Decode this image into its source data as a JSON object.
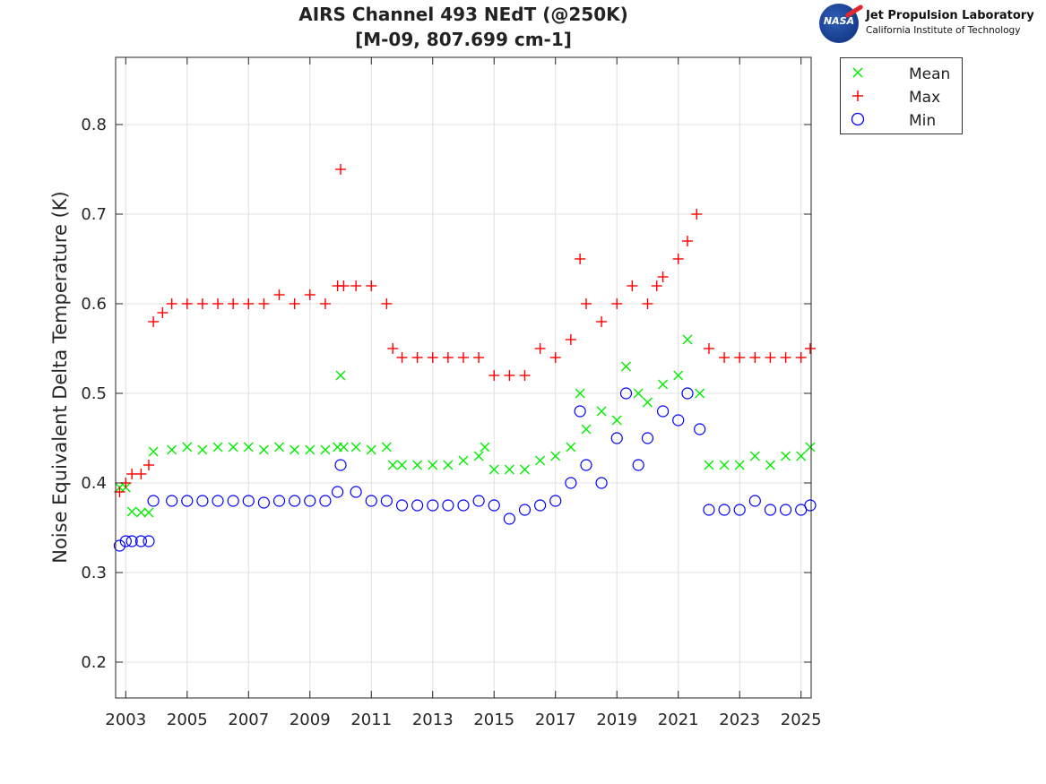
{
  "logo": {
    "seal_text": "NASA",
    "line1": "Jet Propulsion Laboratory",
    "line2": "California Institute of Technology"
  },
  "colors": {
    "mean": "#00ee00",
    "max": "#ff0000",
    "min": "#0000ff",
    "grid": "#e0e0e0",
    "axis": "#262626"
  },
  "chart_data": {
    "type": "scatter",
    "title": "AIRS Channel 493 NEdT (@250K)",
    "subtitle": "[M-09, 807.699 cm-1]",
    "xlabel": "",
    "ylabel": "Noise Equivalent Delta Temperature (K)",
    "xlim": [
      2002.67,
      2025.33
    ],
    "ylim": [
      0.16,
      0.875
    ],
    "x_ticks": [
      2003,
      2005,
      2007,
      2009,
      2011,
      2013,
      2015,
      2017,
      2019,
      2021,
      2023,
      2025
    ],
    "x_tick_labels": [
      "2003",
      "2005",
      "2007",
      "2009",
      "2011",
      "2013",
      "2015",
      "2017",
      "2019",
      "2021",
      "2023",
      "2025"
    ],
    "y_ticks": [
      0.2,
      0.3,
      0.4,
      0.5,
      0.6,
      0.7,
      0.8
    ],
    "y_tick_labels": [
      "0.2",
      "0.3",
      "0.4",
      "0.5",
      "0.6",
      "0.7",
      "0.8"
    ],
    "grid": true,
    "legend_position": "outside-top-right",
    "series": [
      {
        "name": "Mean",
        "marker": "x",
        "x": [
          2002.8,
          2003.0,
          2003.2,
          2003.5,
          2003.75,
          2003.9,
          2004.5,
          2005.0,
          2005.5,
          2006.0,
          2006.5,
          2007.0,
          2007.5,
          2008.0,
          2008.5,
          2009.0,
          2009.5,
          2009.9,
          2010.0,
          2010.1,
          2010.5,
          2011.0,
          2011.5,
          2011.7,
          2012.0,
          2012.5,
          2013.0,
          2013.5,
          2014.0,
          2014.5,
          2014.7,
          2015.0,
          2015.5,
          2016.0,
          2016.5,
          2017.0,
          2017.5,
          2017.8,
          2018.0,
          2018.5,
          2019.0,
          2019.3,
          2019.7,
          2020.0,
          2020.5,
          2021.0,
          2021.3,
          2021.7,
          2022.0,
          2022.5,
          2023.0,
          2023.5,
          2024.0,
          2024.5,
          2025.0,
          2025.3
        ],
        "values": [
          0.395,
          0.395,
          0.368,
          0.367,
          0.367,
          0.435,
          0.437,
          0.44,
          0.437,
          0.44,
          0.44,
          0.44,
          0.437,
          0.44,
          0.437,
          0.437,
          0.437,
          0.44,
          0.52,
          0.44,
          0.44,
          0.437,
          0.44,
          0.42,
          0.42,
          0.42,
          0.42,
          0.42,
          0.425,
          0.43,
          0.44,
          0.415,
          0.415,
          0.415,
          0.425,
          0.43,
          0.44,
          0.5,
          0.46,
          0.48,
          0.47,
          0.53,
          0.5,
          0.49,
          0.51,
          0.52,
          0.56,
          0.5,
          0.42,
          0.42,
          0.42,
          0.43,
          0.42,
          0.43,
          0.43,
          0.44
        ]
      },
      {
        "name": "Max",
        "marker": "+",
        "x": [
          2002.8,
          2003.0,
          2003.2,
          2003.5,
          2003.75,
          2003.9,
          2004.2,
          2004.5,
          2005.0,
          2005.5,
          2006.0,
          2006.5,
          2007.0,
          2007.5,
          2008.0,
          2008.5,
          2009.0,
          2009.5,
          2009.9,
          2010.0,
          2010.1,
          2010.5,
          2011.0,
          2011.5,
          2011.7,
          2012.0,
          2012.5,
          2013.0,
          2013.5,
          2014.0,
          2014.5,
          2015.0,
          2015.5,
          2016.0,
          2016.5,
          2017.0,
          2017.5,
          2017.8,
          2018.0,
          2018.5,
          2019.0,
          2019.5,
          2020.0,
          2020.3,
          2020.5,
          2021.0,
          2021.3,
          2021.6,
          2022.0,
          2022.5,
          2023.0,
          2023.5,
          2024.0,
          2024.5,
          2025.0,
          2025.3
        ],
        "values": [
          0.39,
          0.4,
          0.41,
          0.41,
          0.42,
          0.58,
          0.59,
          0.6,
          0.6,
          0.6,
          0.6,
          0.6,
          0.6,
          0.6,
          0.61,
          0.6,
          0.61,
          0.6,
          0.62,
          0.75,
          0.62,
          0.62,
          0.62,
          0.6,
          0.55,
          0.54,
          0.54,
          0.54,
          0.54,
          0.54,
          0.54,
          0.52,
          0.52,
          0.52,
          0.55,
          0.54,
          0.56,
          0.65,
          0.6,
          0.58,
          0.6,
          0.62,
          0.6,
          0.62,
          0.63,
          0.65,
          0.67,
          0.7,
          0.55,
          0.54,
          0.54,
          0.54,
          0.54,
          0.54,
          0.54,
          0.55
        ]
      },
      {
        "name": "Min",
        "marker": "o",
        "x": [
          2002.8,
          2003.0,
          2003.2,
          2003.5,
          2003.75,
          2003.9,
          2004.5,
          2005.0,
          2005.5,
          2006.0,
          2006.5,
          2007.0,
          2007.5,
          2008.0,
          2008.5,
          2009.0,
          2009.5,
          2009.9,
          2010.0,
          2010.5,
          2011.0,
          2011.5,
          2012.0,
          2012.5,
          2013.0,
          2013.5,
          2014.0,
          2014.5,
          2015.0,
          2015.5,
          2016.0,
          2016.5,
          2017.0,
          2017.5,
          2017.8,
          2018.0,
          2018.5,
          2019.0,
          2019.3,
          2019.7,
          2020.0,
          2020.5,
          2021.0,
          2021.3,
          2021.7,
          2022.0,
          2022.5,
          2023.0,
          2023.5,
          2024.0,
          2024.5,
          2025.0,
          2025.3
        ],
        "values": [
          0.33,
          0.335,
          0.335,
          0.335,
          0.335,
          0.38,
          0.38,
          0.38,
          0.38,
          0.38,
          0.38,
          0.38,
          0.378,
          0.38,
          0.38,
          0.38,
          0.38,
          0.39,
          0.42,
          0.39,
          0.38,
          0.38,
          0.375,
          0.375,
          0.375,
          0.375,
          0.375,
          0.38,
          0.375,
          0.36,
          0.37,
          0.375,
          0.38,
          0.4,
          0.48,
          0.42,
          0.4,
          0.45,
          0.5,
          0.42,
          0.45,
          0.48,
          0.47,
          0.5,
          0.46,
          0.37,
          0.37,
          0.37,
          0.38,
          0.37,
          0.37,
          0.37,
          0.375
        ]
      }
    ]
  }
}
